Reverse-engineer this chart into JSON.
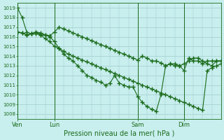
{
  "background_color": "#c8eeee",
  "grid_color": "#a0cccc",
  "line_color": "#1a6b1a",
  "marker": "+",
  "markersize": 4,
  "linewidth": 0.8,
  "xlabel": "Pression niveau de la mer( hPa )",
  "ylim": [
    1007.5,
    1019.5
  ],
  "yticks": [
    1008,
    1009,
    1010,
    1011,
    1012,
    1013,
    1014,
    1015,
    1016,
    1017,
    1018,
    1019
  ],
  "xlabel_fontsize": 7,
  "ytick_fontsize": 5,
  "xtick_fontsize": 6,
  "xtick_labels": [
    "Ven",
    "Lun",
    "Sam",
    "Dim"
  ],
  "xtick_positions": [
    0,
    8,
    26,
    36
  ],
  "vline_positions": [
    0,
    8,
    26,
    36
  ],
  "n_points": 45,
  "series": [
    [
      1019.0,
      1018.0,
      1016.5,
      1016.3,
      1016.3,
      1016.2,
      1016.2,
      1016.1,
      1016.5,
      1017.0,
      1016.8,
      1016.6,
      1016.4,
      1016.2,
      1016.0,
      1015.8,
      1015.6,
      1015.4,
      1015.2,
      1015.0,
      1014.8,
      1014.6,
      1014.4,
      1014.2,
      1014.0,
      1013.8,
      1013.6,
      1014.0,
      1013.8,
      1013.5,
      1013.5,
      1013.3,
      1013.0,
      1013.2,
      1013.2,
      1013.0,
      1013.2,
      1013.5,
      1013.8,
      1013.8,
      1013.5,
      1013.2,
      1013.0,
      1013.5,
      1013.5
    ],
    [
      1016.5,
      1016.4,
      1016.2,
      1016.3,
      1016.5,
      1016.4,
      1016.2,
      1016.0,
      1015.5,
      1014.8,
      1014.2,
      1013.8,
      1013.5,
      1013.0,
      1012.5,
      1012.0,
      1011.8,
      1011.5,
      1011.3,
      1011.0,
      1011.2,
      1012.0,
      1011.2,
      1011.0,
      1010.8,
      1010.8,
      1009.8,
      1009.2,
      1008.8,
      1008.5,
      1008.3,
      1010.0,
      1013.0,
      1013.2,
      1013.0,
      1013.0,
      1012.5,
      1013.8,
      1013.5,
      1013.5,
      1013.2,
      1013.5,
      1013.5,
      1013.5,
      1013.5
    ],
    [
      1016.5,
      1016.4,
      1016.2,
      1016.3,
      1016.5,
      1016.2,
      1015.8,
      1015.5,
      1015.0,
      1014.8,
      1014.5,
      1014.2,
      1014.0,
      1013.8,
      1013.6,
      1013.4,
      1013.2,
      1013.0,
      1012.8,
      1012.6,
      1012.4,
      1012.2,
      1012.0,
      1011.8,
      1011.6,
      1011.4,
      1011.2,
      1011.0,
      1010.8,
      1010.6,
      1010.4,
      1010.2,
      1010.0,
      1009.8,
      1009.6,
      1009.4,
      1009.2,
      1009.0,
      1008.8,
      1008.6,
      1008.4,
      1012.5,
      1012.8,
      1013.0,
      1013.2
    ]
  ]
}
